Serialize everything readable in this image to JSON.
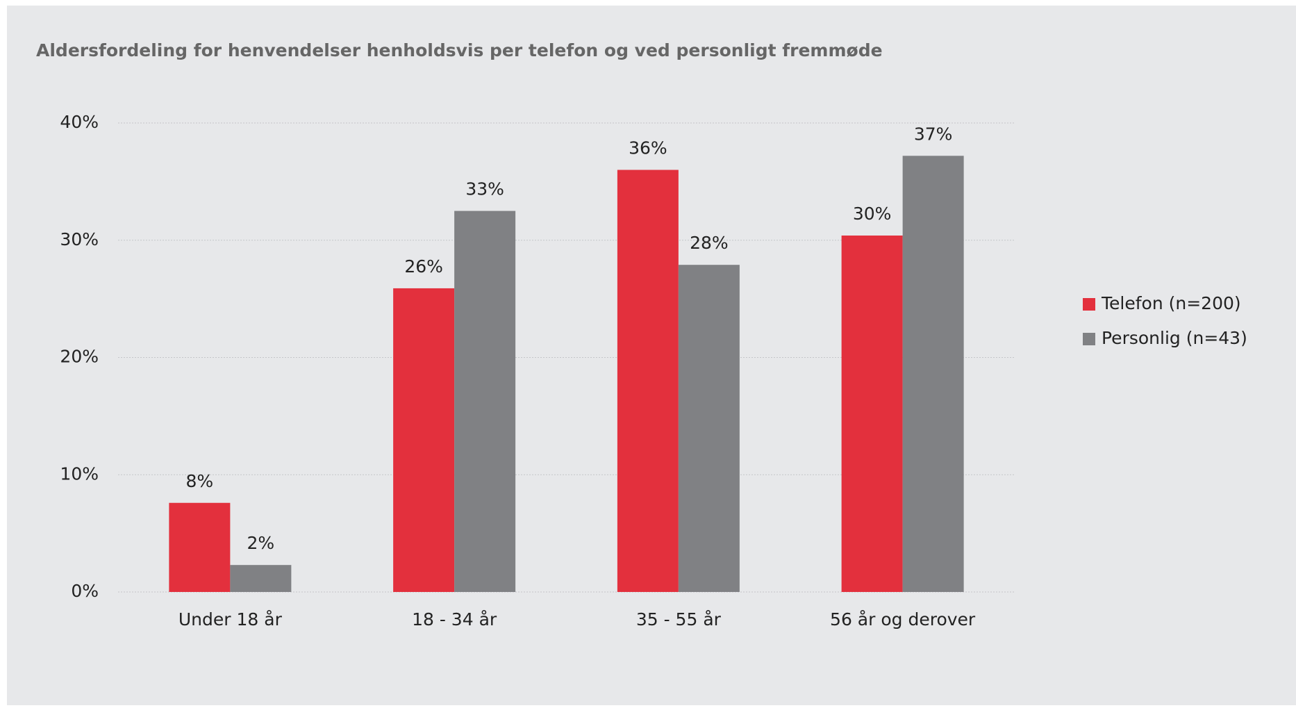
{
  "chart_data": {
    "type": "bar",
    "title": "Aldersfordeling for henvendelser henholdsvis per telefon og ved personligt fremmøde",
    "categories": [
      "Under 18 år",
      "18 - 34 år",
      "35 - 55 år",
      "56 år og derover"
    ],
    "series": [
      {
        "name": "Telefon (n=200)",
        "color": "#e3303d",
        "values": [
          7.6,
          25.9,
          36.0,
          30.4
        ],
        "value_labels": [
          "8%",
          "26%",
          "36%",
          "30%"
        ]
      },
      {
        "name": "Personlig (n=43)",
        "color": "#808184",
        "values": [
          2.3,
          32.5,
          27.9,
          37.2
        ],
        "value_labels": [
          "2%",
          "33%",
          "28%",
          "37%"
        ]
      }
    ],
    "ylim": [
      0,
      40
    ],
    "yticks": [
      {
        "value": 0,
        "label": "0%"
      },
      {
        "value": 10,
        "label": "10%"
      },
      {
        "value": 20,
        "label": "20%"
      },
      {
        "value": 30,
        "label": "30%"
      },
      {
        "value": 40,
        "label": "40%"
      }
    ],
    "grid": true,
    "legend": "right"
  }
}
